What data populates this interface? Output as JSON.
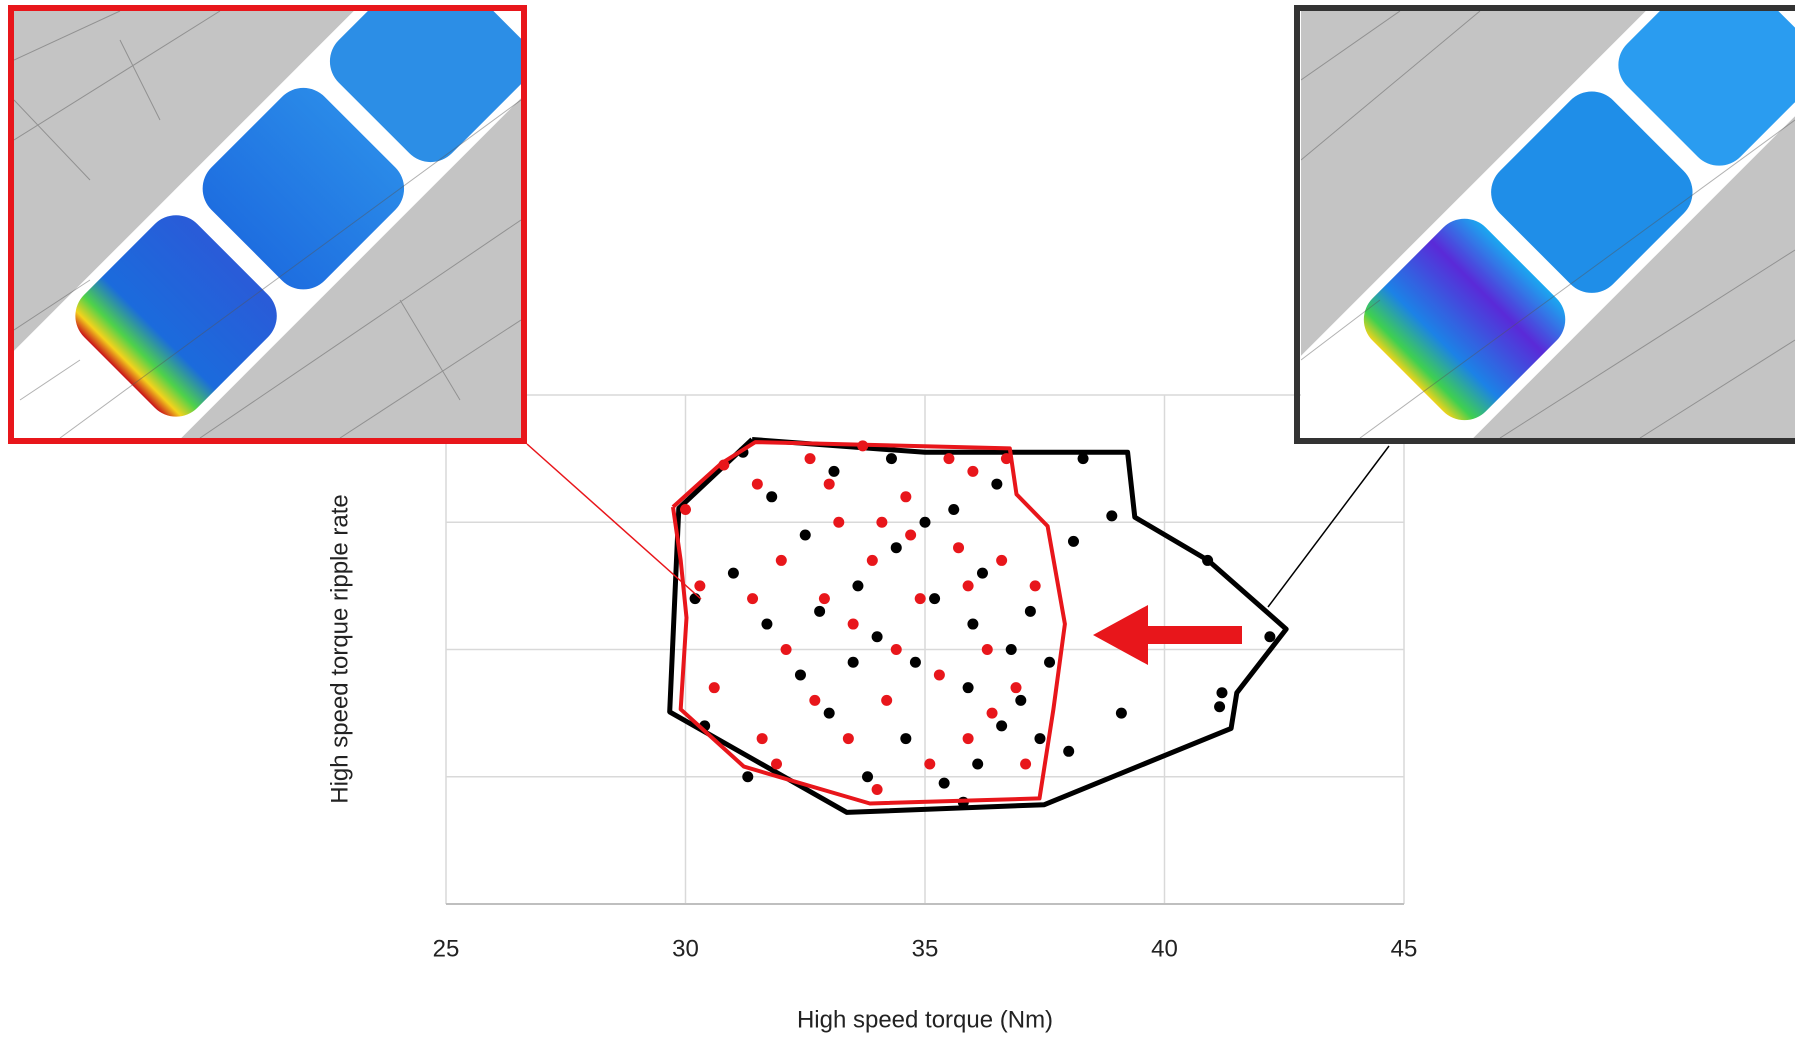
{
  "chart_data": {
    "type": "scatter",
    "x_label": "High speed torque (Nm)",
    "y_label": "High speed torque ripple rate",
    "xlim": [
      25,
      45
    ],
    "xticks": [
      25,
      30,
      35,
      40,
      45
    ],
    "ylim": [
      0,
      4
    ],
    "y_gridlines": [
      0,
      1,
      2,
      3,
      4
    ],
    "grid": true,
    "series": [
      {
        "color": "#000000",
        "x": [
          31.2,
          31.8,
          32.5,
          33.1,
          33.6,
          34.0,
          34.4,
          34.8,
          35.2,
          35.6,
          35.9,
          36.2,
          36.5,
          36.8,
          37.0,
          37.2,
          37.4,
          36.1,
          35.4,
          34.6,
          33.8,
          33.0,
          32.4,
          31.7,
          31.0,
          30.4,
          30.2,
          31.3,
          32.8,
          33.5,
          34.3,
          35.0,
          36.0,
          36.6,
          37.6,
          38.3,
          38.9,
          38.1,
          39.1,
          40.9,
          41.2,
          41.15,
          42.2,
          38.0,
          35.8
        ],
        "y": [
          3.55,
          3.2,
          2.9,
          3.4,
          2.5,
          2.1,
          2.8,
          1.9,
          2.4,
          3.1,
          1.7,
          2.6,
          3.3,
          2.0,
          1.6,
          2.3,
          1.3,
          1.1,
          0.95,
          1.3,
          1.0,
          1.5,
          1.8,
          2.2,
          2.6,
          1.4,
          2.4,
          1.0,
          2.3,
          1.9,
          3.5,
          3.0,
          2.2,
          1.4,
          1.9,
          3.5,
          3.05,
          2.85,
          1.5,
          2.7,
          1.66,
          1.55,
          2.1,
          1.2,
          0.8
        ]
      },
      {
        "color": "#e8161b",
        "x": [
          30.8,
          31.5,
          32.0,
          32.6,
          33.2,
          33.5,
          33.9,
          34.2,
          34.6,
          34.9,
          35.3,
          35.7,
          36.0,
          36.3,
          36.6,
          36.9,
          37.3,
          37.1,
          35.9,
          35.1,
          34.0,
          33.4,
          32.7,
          32.1,
          31.4,
          30.6,
          30.3,
          31.6,
          32.9,
          34.4,
          35.5,
          36.4,
          33.0,
          34.7,
          35.9,
          31.9,
          30.0,
          36.7,
          33.7,
          34.1
        ],
        "y": [
          3.45,
          3.3,
          2.7,
          3.5,
          3.0,
          2.2,
          2.7,
          1.6,
          3.2,
          2.4,
          1.8,
          2.8,
          3.4,
          2.0,
          2.7,
          1.7,
          2.5,
          1.1,
          1.3,
          1.1,
          0.9,
          1.3,
          1.6,
          2.0,
          2.4,
          1.7,
          2.5,
          1.3,
          2.4,
          2.0,
          3.5,
          1.5,
          3.3,
          2.9,
          2.5,
          1.1,
          3.1,
          3.5,
          3.6,
          3.0
        ]
      }
    ],
    "envelopes": [
      {
        "color": "#000000",
        "x": [
          31.39,
          35.0,
          39.23,
          39.38,
          40.91,
          42.54,
          41.51,
          41.39,
          37.49,
          33.37,
          29.67,
          29.86,
          31.39
        ],
        "y": [
          3.65,
          3.55,
          3.55,
          3.04,
          2.7,
          2.16,
          1.66,
          1.38,
          0.78,
          0.72,
          1.51,
          3.11,
          3.65
        ]
      },
      {
        "color": "#e8161b",
        "x": [
          29.74,
          30.74,
          31.46,
          36.77,
          36.91,
          37.56,
          37.92,
          37.68,
          37.39,
          33.85,
          31.22,
          29.9,
          30.02,
          29.9,
          29.74
        ],
        "y": [
          3.12,
          3.46,
          3.63,
          3.58,
          3.22,
          2.97,
          2.2,
          1.53,
          0.83,
          0.79,
          1.08,
          1.53,
          2.25,
          2.7,
          3.12
        ]
      }
    ]
  }
}
